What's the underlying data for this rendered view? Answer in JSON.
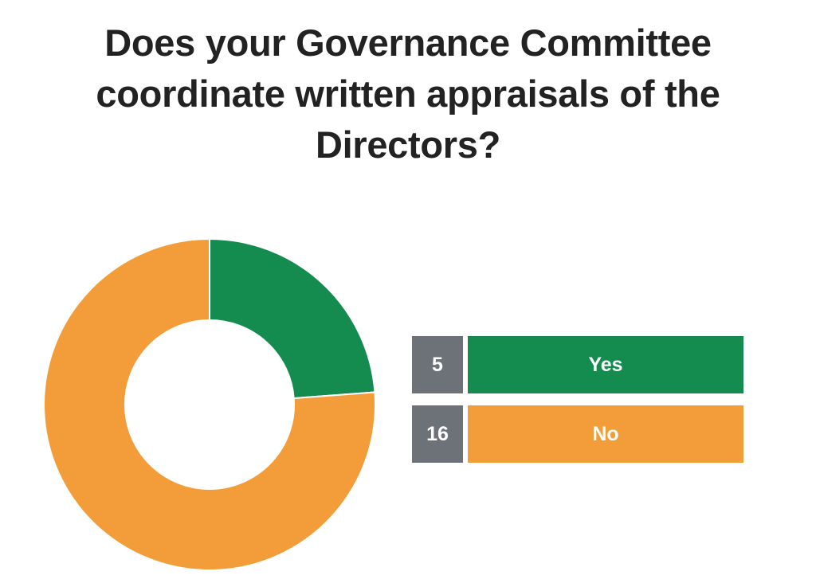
{
  "chart_data": {
    "type": "pie",
    "variant": "donut",
    "title": "Does your Governance Committee coordinate written appraisals of the Directors?",
    "categories": [
      "Yes",
      "No"
    ],
    "values": [
      5,
      16
    ],
    "colors": [
      "#148c4f",
      "#f29d39"
    ],
    "legend_placement": "right",
    "grid": false
  }
}
